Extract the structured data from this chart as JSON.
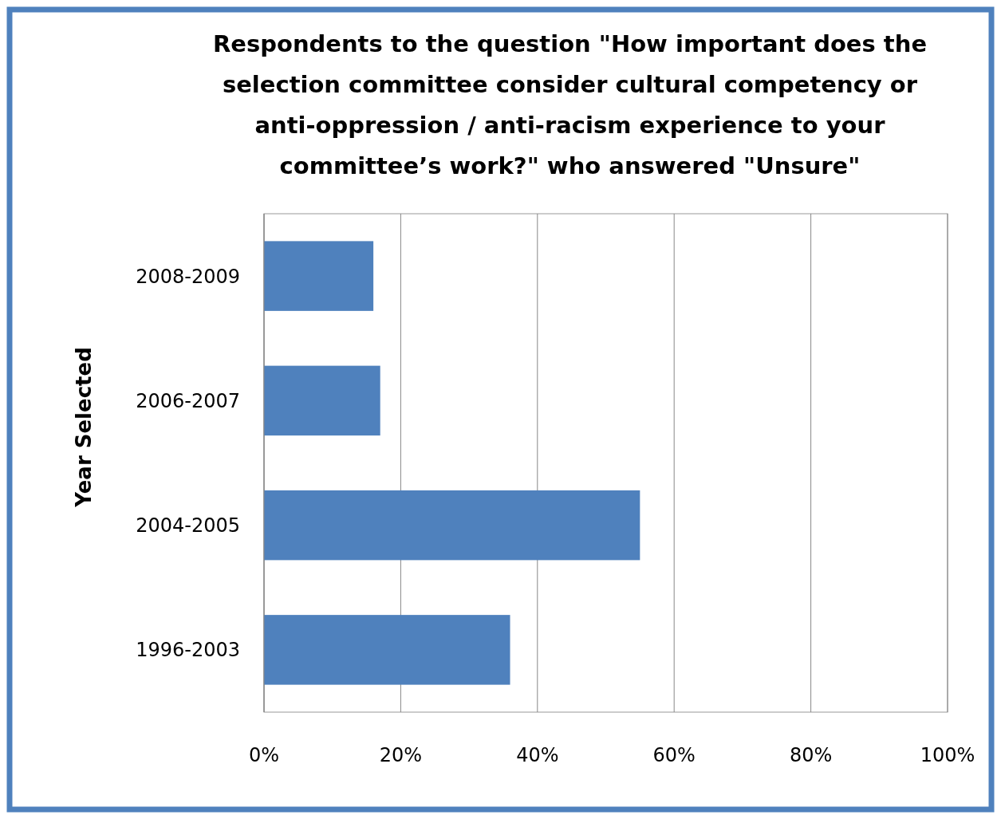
{
  "chart_data": {
    "type": "bar",
    "orientation": "horizontal",
    "title": "Respondents to the question \"How important does the selection committee consider cultural competency or anti-oppression / anti-racism experience to your committee’s work?\" who answered \"Unsure\"",
    "ylabel": "Year Selected",
    "categories": [
      "2008-2009",
      "2006-2007",
      "2004-2005",
      "1996-2003"
    ],
    "values": [
      16,
      17,
      55,
      36
    ],
    "color": "#4f81bd",
    "xlim": [
      0,
      100
    ],
    "xticks": [
      {
        "value": 0,
        "label": "0%"
      },
      {
        "value": 20,
        "label": "20%"
      },
      {
        "value": 40,
        "label": "40%"
      },
      {
        "value": 60,
        "label": "60%"
      },
      {
        "value": 80,
        "label": "80%"
      },
      {
        "value": 100,
        "label": "100%"
      }
    ],
    "grid": "x"
  }
}
